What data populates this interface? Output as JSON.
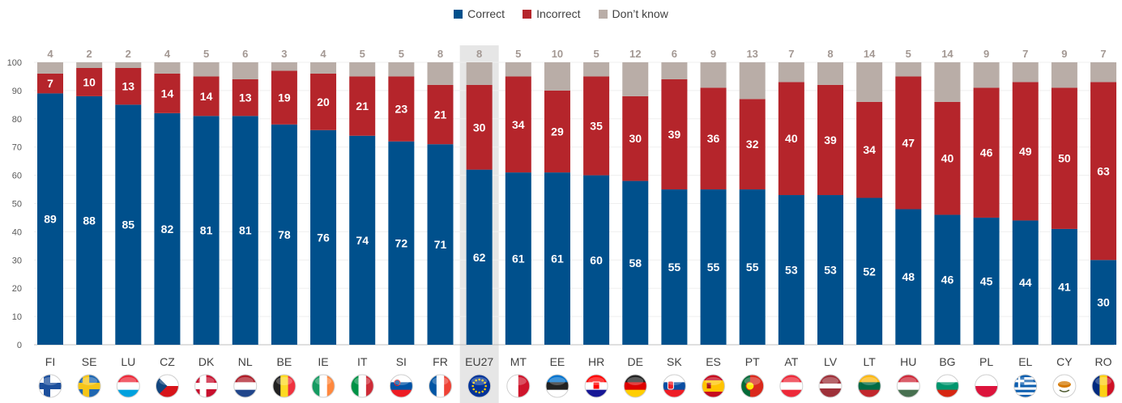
{
  "chart_data": {
    "type": "bar",
    "stacked": true,
    "categories": [
      "FI",
      "SE",
      "LU",
      "CZ",
      "DK",
      "NL",
      "BE",
      "IE",
      "IT",
      "SI",
      "FR",
      "EU27",
      "MT",
      "EE",
      "HR",
      "DE",
      "SK",
      "ES",
      "PT",
      "AT",
      "LV",
      "LT",
      "HU",
      "BG",
      "PL",
      "EL",
      "CY",
      "RO"
    ],
    "highlight_category": "EU27",
    "series": [
      {
        "name": "Correct",
        "color": "#00508c",
        "values": [
          89,
          88,
          85,
          82,
          81,
          81,
          78,
          76,
          74,
          72,
          71,
          62,
          61,
          61,
          60,
          58,
          55,
          55,
          55,
          53,
          53,
          52,
          48,
          46,
          45,
          44,
          41,
          30
        ]
      },
      {
        "name": "Incorrect",
        "color": "#b5252b",
        "values": [
          7,
          10,
          13,
          14,
          14,
          13,
          19,
          20,
          21,
          23,
          21,
          30,
          34,
          29,
          35,
          30,
          39,
          36,
          32,
          40,
          39,
          34,
          47,
          40,
          46,
          49,
          50,
          63
        ]
      },
      {
        "name": "Don’t know",
        "color": "#b9ada7",
        "values": [
          4,
          2,
          2,
          4,
          5,
          6,
          3,
          4,
          5,
          5,
          8,
          8,
          5,
          10,
          5,
          12,
          6,
          9,
          13,
          7,
          8,
          14,
          5,
          14,
          9,
          7,
          9,
          7
        ]
      }
    ],
    "ylim": [
      0,
      100
    ],
    "yticks": [
      0,
      10,
      20,
      30,
      40,
      50,
      60,
      70,
      80,
      90,
      100
    ],
    "legend_position": "top-center",
    "flag_icons": [
      "flag-fi",
      "flag-se",
      "flag-lu",
      "flag-cz",
      "flag-dk",
      "flag-nl",
      "flag-be",
      "flag-ie",
      "flag-it",
      "flag-si",
      "flag-fr",
      "flag-eu",
      "flag-mt",
      "flag-ee",
      "flag-hr",
      "flag-de",
      "flag-sk",
      "flag-es",
      "flag-pt",
      "flag-at",
      "flag-lv",
      "flag-lt",
      "flag-hu",
      "flag-bg",
      "flag-pl",
      "flag-el",
      "flag-cy",
      "flag-ro"
    ]
  }
}
